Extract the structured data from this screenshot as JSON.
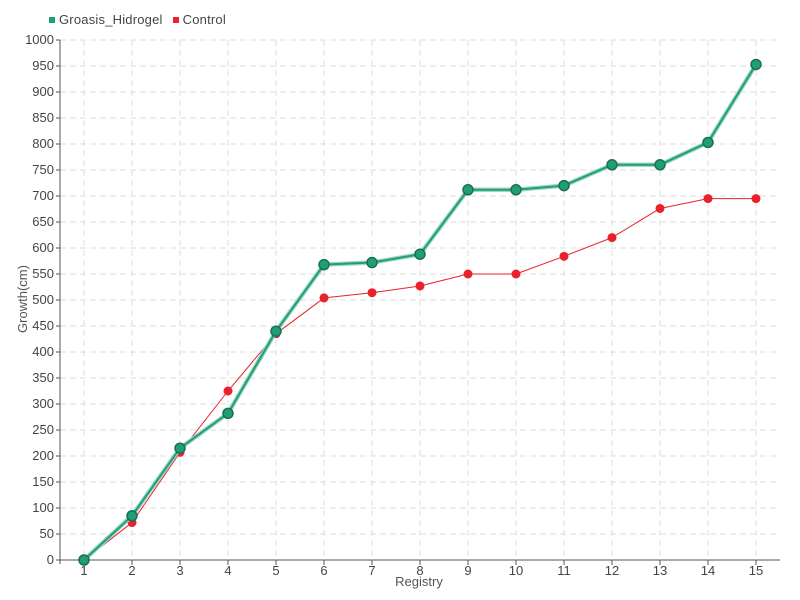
{
  "chart_data": {
    "type": "line",
    "title": "",
    "xlabel": "Registry",
    "ylabel": "Growth(cm)",
    "categories": [
      "1",
      "2",
      "3",
      "4",
      "5",
      "6",
      "7",
      "8",
      "9",
      "10",
      "11",
      "12",
      "13",
      "14",
      "15"
    ],
    "ylim": [
      0,
      1000
    ],
    "y_ticks": [
      0,
      50,
      100,
      150,
      200,
      250,
      300,
      350,
      400,
      450,
      500,
      550,
      600,
      650,
      700,
      750,
      800,
      850,
      900,
      950,
      1000
    ],
    "grid": true,
    "legend_position": "top-left",
    "series": [
      {
        "name": "Groasis_Hidrogel",
        "color": "#1f9e78",
        "values": [
          0,
          85,
          215,
          282,
          440,
          568,
          572,
          588,
          712,
          712,
          720,
          760,
          760,
          803,
          953
        ]
      },
      {
        "name": "Control",
        "color": "#e8212b",
        "values": [
          0,
          72,
          207,
          325,
          435,
          504,
          514,
          527,
          550,
          550,
          584,
          620,
          676,
          695,
          695
        ]
      }
    ]
  }
}
